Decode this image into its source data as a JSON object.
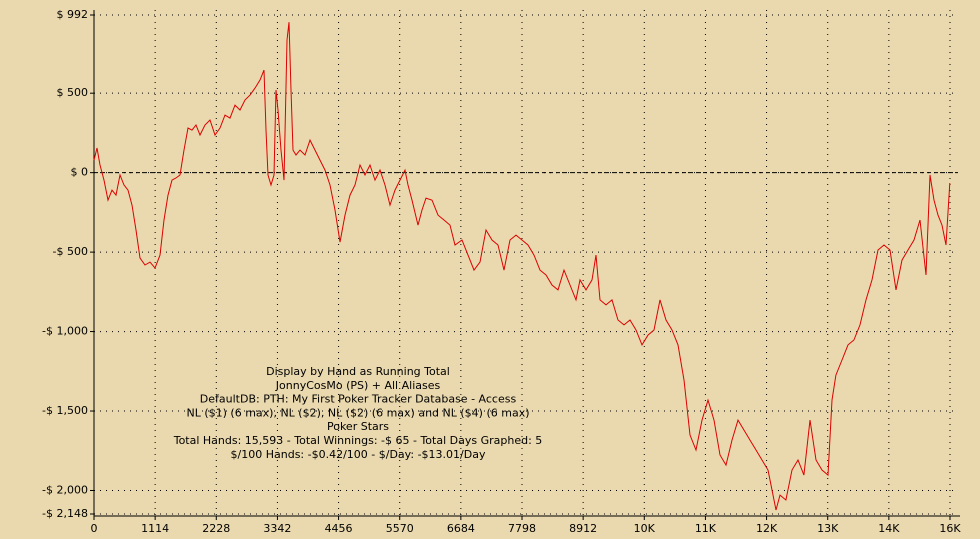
{
  "chart_data": {
    "type": "line",
    "color": "#dd0000",
    "grid": true,
    "zero_line": true,
    "annotations": [
      "Display by Hand as Running Total",
      "JonnyCosMo (PS) + All Aliases",
      "DefaultDB: PTH: My First Poker Tracker Database - Access",
      "NL ($1) (6 max), NL ($2), NL ($2) (6 max) and NL ($4) (6 max)",
      "Poker Stars",
      "Total Hands: 15,593 - Total Winnings: -$ 65 - Total Days Graphed: 5",
      "$/100 Hands: -$0.42/100 - $/Day: -$13.01/Day"
    ],
    "xlim": [
      0,
      15596
    ],
    "xticks": [
      0,
      1114,
      2228,
      3342,
      4456,
      5570,
      6684,
      7798,
      8912,
      {
        "value": 10026,
        "label": "10K"
      },
      {
        "value": 11140,
        "label": "11K"
      },
      {
        "value": 12254,
        "label": "12K"
      },
      {
        "value": 13368,
        "label": "13K"
      },
      {
        "value": 14482,
        "label": "14K"
      },
      {
        "value": 15596,
        "label": "16K"
      }
    ],
    "ylim": [
      -2148,
      992
    ],
    "yticks": [
      {
        "value": 992,
        "label": "$ 992"
      },
      {
        "value": 500,
        "label": "$ 500"
      },
      {
        "value": 0,
        "label": "$ 0"
      },
      {
        "value": -500,
        "label": "-$ 500"
      },
      {
        "value": -1000,
        "label": "-$ 1,000"
      },
      {
        "value": -1500,
        "label": "-$ 1,500"
      },
      {
        "value": -2000,
        "label": "-$ 2,000"
      },
      {
        "value": -2148,
        "label": "-$ 2,148"
      }
    ],
    "x": [
      0,
      55,
      109,
      182,
      255,
      328,
      401,
      474,
      547,
      620,
      692,
      765,
      838,
      929,
      1020,
      1111,
      1203,
      1275,
      1348,
      1421,
      1494,
      1567,
      1640,
      1713,
      1786,
      1858,
      1931,
      2022,
      2114,
      2205,
      2296,
      2387,
      2478,
      2569,
      2660,
      2751,
      2843,
      2934,
      3025,
      3097,
      3134,
      3170,
      3225,
      3280,
      3316,
      3352,
      3407,
      3462,
      3516,
      3553,
      3589,
      3626,
      3680,
      3753,
      3844,
      3935,
      4026,
      4118,
      4209,
      4300,
      4391,
      4482,
      4573,
      4664,
      4755,
      4846,
      4938,
      5029,
      5120,
      5211,
      5302,
      5393,
      5484,
      5575,
      5666,
      5721,
      5794,
      5903,
      5976,
      6049,
      6159,
      6268,
      6377,
      6486,
      6577,
      6705,
      6815,
      6924,
      7033,
      7143,
      7252,
      7361,
      7470,
      7580,
      7689,
      7798,
      7908,
      8017,
      8126,
      8236,
      8345,
      8454,
      8564,
      8673,
      8782,
      8855,
      8964,
      9073,
      9146,
      9219,
      9328,
      9438,
      9547,
      9656,
      9766,
      9875,
      9984,
      10094,
      10203,
      10312,
      10422,
      10531,
      10640,
      10750,
      10859,
      10968,
      11077,
      11187,
      11296,
      11405,
      11515,
      11624,
      11733,
      11842,
      11952,
      12061,
      12170,
      12280,
      12352,
      12425,
      12498,
      12607,
      12717,
      12826,
      12935,
      13045,
      13154,
      13263,
      13373,
      13446,
      13518,
      13628,
      13737,
      13846,
      13956,
      14065,
      14174,
      14284,
      14393,
      14502,
      14612,
      14721,
      14830,
      14940,
      15049,
      15158,
      15231,
      15304,
      15377,
      15450,
      15523,
      15593
    ],
    "values": [
      79,
      155,
      48,
      -47,
      -173,
      -110,
      -141,
      -15,
      -78,
      -110,
      -204,
      -361,
      -537,
      -581,
      -563,
      -600,
      -519,
      -298,
      -141,
      -47,
      -34,
      -15,
      142,
      281,
      268,
      300,
      237,
      300,
      331,
      237,
      281,
      362,
      343,
      425,
      394,
      457,
      488,
      532,
      583,
      645,
      268,
      -15,
      -78,
      -15,
      520,
      394,
      142,
      -47,
      834,
      947,
      520,
      142,
      111,
      142,
      111,
      205,
      142,
      79,
      16,
      -78,
      -235,
      -437,
      -267,
      -141,
      -78,
      48,
      -15,
      48,
      -47,
      16,
      -78,
      -204,
      -110,
      -47,
      16,
      -78,
      -173,
      -330,
      -235,
      -160,
      -173,
      -267,
      -298,
      -330,
      -455,
      -424,
      -519,
      -613,
      -563,
      -361,
      -424,
      -455,
      -613,
      -424,
      -393,
      -424,
      -455,
      -519,
      -613,
      -644,
      -707,
      -738,
      -613,
      -707,
      -801,
      -675,
      -738,
      -675,
      -519,
      -801,
      -832,
      -801,
      -927,
      -958,
      -927,
      -990,
      -1084,
      -1022,
      -990,
      -801,
      -927,
      -990,
      -1084,
      -1305,
      -1651,
      -1745,
      -1557,
      -1431,
      -1557,
      -1777,
      -1840,
      -1683,
      -1557,
      -1620,
      -1683,
      -1745,
      -1808,
      -1871,
      -1997,
      -2123,
      -2029,
      -2060,
      -1871,
      -1808,
      -1903,
      -1557,
      -1808,
      -1871,
      -1903,
      -1431,
      -1274,
      -1179,
      -1084,
      -1053,
      -958,
      -801,
      -675,
      -487,
      -455,
      -487,
      -738,
      -550,
      -487,
      -424,
      -298,
      -644,
      -15,
      -173,
      -267,
      -330,
      -455,
      -65
    ]
  }
}
